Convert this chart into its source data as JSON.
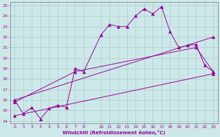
{
  "xlabel": "Windchill (Refroidissement éolien,°C)",
  "background_color": "#cde8e8",
  "grid_color": "#aacccc",
  "line_color": "#990099",
  "xlim_min": -0.5,
  "xlim_max": 23.5,
  "ylim_min": 13.8,
  "ylim_max": 25.3,
  "xticks": [
    0,
    1,
    2,
    3,
    4,
    5,
    6,
    7,
    8,
    10,
    11,
    12,
    13,
    14,
    15,
    16,
    17,
    18,
    19,
    20,
    21,
    22,
    23
  ],
  "yticks": [
    14,
    15,
    16,
    17,
    18,
    19,
    20,
    21,
    22,
    23,
    24,
    25
  ],
  "line1_x": [
    0,
    1,
    2,
    3,
    4,
    5,
    6,
    7,
    8,
    10,
    11,
    12,
    13,
    14,
    15,
    16,
    17,
    18,
    19,
    20,
    21,
    22,
    23
  ],
  "line1_y": [
    16.0,
    14.7,
    15.3,
    14.2,
    15.2,
    15.5,
    15.3,
    19.0,
    18.7,
    22.2,
    23.2,
    23.0,
    23.0,
    24.0,
    24.7,
    24.2,
    24.9,
    22.5,
    21.0,
    21.2,
    21.3,
    19.3,
    18.7
  ],
  "line2_x": [
    0,
    7,
    21,
    23
  ],
  "line2_y": [
    15.8,
    18.7,
    21.0,
    18.7
  ],
  "line3_x": [
    0,
    23
  ],
  "line3_y": [
    14.5,
    18.5
  ],
  "line4_x": [
    0,
    23
  ],
  "line4_y": [
    16.0,
    22.0
  ]
}
